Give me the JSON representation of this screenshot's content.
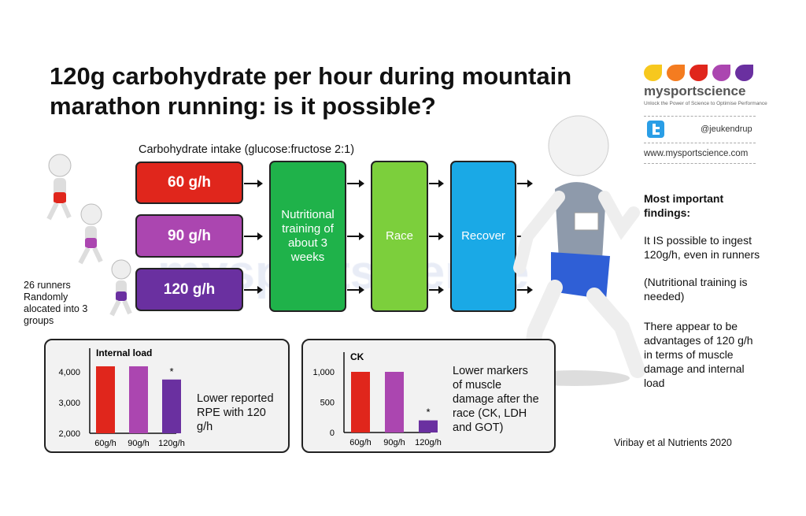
{
  "title": "120g carbohydrate per hour during mountain marathon running: is it possible?",
  "intake_label": "Carbohydrate intake (glucose:fructose 2:1)",
  "groups": [
    {
      "label": "60 g/h",
      "color": "#e0261c"
    },
    {
      "label": "90 g/h",
      "color": "#ab46b0"
    },
    {
      "label": "120 g/h",
      "color": "#6a30a0"
    }
  ],
  "stages": [
    {
      "label": "Nutritional training of about 3 weeks",
      "color": "#1fb24a"
    },
    {
      "label": "Race",
      "color": "#7ccf3c"
    },
    {
      "label": "Recover",
      "color": "#1aa9e6"
    }
  ],
  "runners_text": "26 runners Randomly alocated into 3 groups",
  "watermark": "mysportscience",
  "brand": {
    "name": "mysportscience",
    "tagline": "Unlock the Power of Science to Optimise Performance",
    "twitter": "@jeukendrup",
    "url": "www.mysportscience.com",
    "drop_colors": [
      "#f7c81e",
      "#f47c20",
      "#e0261c",
      "#ab46b0",
      "#6a30a0"
    ]
  },
  "findings": {
    "heading": "Most important findings:",
    "items": [
      "It IS possible to ingest 120g/h, even in runners",
      "(Nutritional training is needed)",
      "There appear to be advantages of 120 g/h in terms of muscle damage and internal load"
    ]
  },
  "citation": "Viribay et al Nutrients 2020",
  "chart_data": [
    {
      "type": "bar",
      "title": "Internal load",
      "categories": [
        "60g/h",
        "90g/h",
        "120g/h"
      ],
      "values": [
        4180,
        4180,
        3750
      ],
      "ylim": [
        2000,
        4400
      ],
      "yticks": [
        "2,000",
        "3,000",
        "4,000"
      ],
      "ytick_values": [
        2000,
        3000,
        4000
      ],
      "colors": [
        "#e0261c",
        "#ab46b0",
        "#6a30a0"
      ],
      "annotations": [
        "",
        "",
        "*"
      ],
      "caption": "Lower reported RPE with 120 g/h"
    },
    {
      "type": "bar",
      "title": "CK",
      "categories": [
        "60g/h",
        "90g/h",
        "120g/h"
      ],
      "values": [
        1000,
        1000,
        200
      ],
      "ylim": [
        0,
        1200
      ],
      "yticks": [
        "0",
        "500",
        "1,000"
      ],
      "ytick_values": [
        0,
        500,
        1000
      ],
      "colors": [
        "#e0261c",
        "#ab46b0",
        "#6a30a0"
      ],
      "annotations": [
        "",
        "",
        "*"
      ],
      "caption": "Lower markers of muscle damage after the race (CK, LDH and GOT)"
    }
  ]
}
